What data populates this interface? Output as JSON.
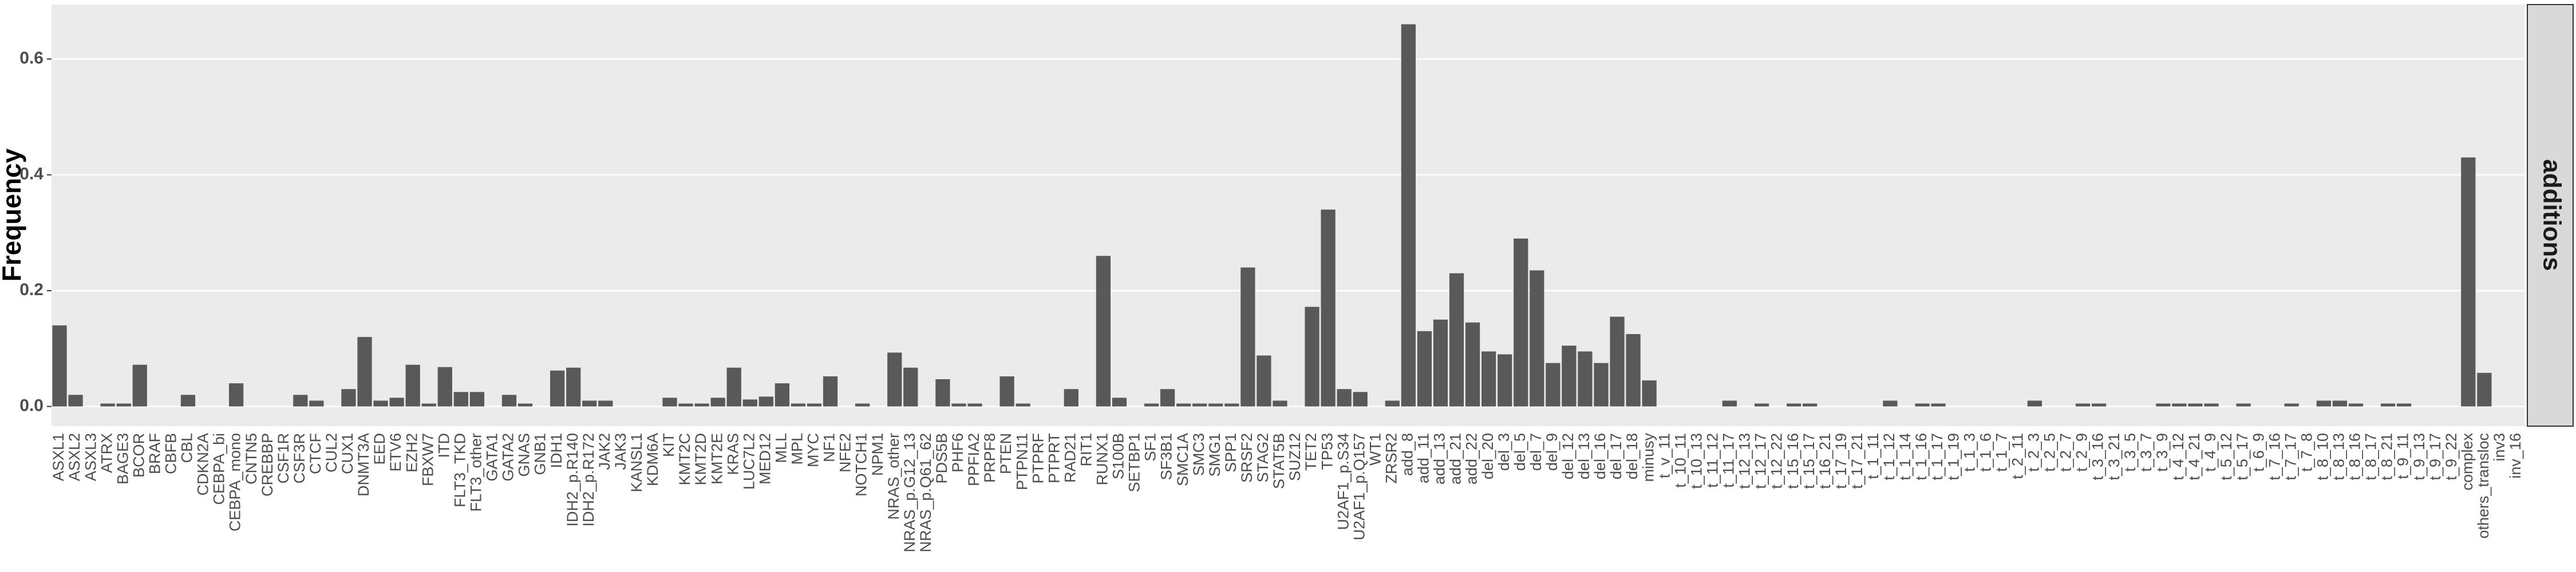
{
  "chart_data": {
    "type": "bar",
    "ylabel": "Frequency",
    "facet_label": "additions",
    "color": "#595959",
    "grid": true,
    "ylim": [
      -0.034,
      0.694
    ],
    "yticks": [
      {
        "value": 0,
        "label": "0.0"
      },
      0.2,
      0.4,
      0.6
    ],
    "categories": [
      "ASXL1",
      "ASXL2",
      "ASXL3",
      "ATRX",
      "BAGE3",
      "BCOR",
      "BRAF",
      "CBFB",
      "CBL",
      "CDKN2A",
      "CEBPA_bi",
      "CEBPA_mono",
      "CNTN5",
      "CREBBP",
      "CSF1R",
      "CSF3R",
      "CTCF",
      "CUL2",
      "CUX1",
      "DNMT3A",
      "EED",
      "ETV6",
      "EZH2",
      "FBXW7",
      "ITD",
      "FLT3_TKD",
      "FLT3_other",
      "GATA1",
      "GATA2",
      "GNAS",
      "GNB1",
      "IDH1",
      "IDH2_p.R140",
      "IDH2_p.R172",
      "JAK2",
      "JAK3",
      "KANSL1",
      "KDM6A",
      "KIT",
      "KMT2C",
      "KMT2D",
      "KMT2E",
      "KRAS",
      "LUC7L2",
      "MED12",
      "MLL",
      "MPL",
      "MYC",
      "NF1",
      "NFE2",
      "NOTCH1",
      "NPM1",
      "NRAS_other",
      "NRAS_p.G12_13",
      "NRAS_p.Q61_62",
      "PDS5B",
      "PHF6",
      "PPFIA2",
      "PRPF8",
      "PTEN",
      "PTPN11",
      "PTPRF",
      "PTPRT",
      "RAD21",
      "RIT1",
      "RUNX1",
      "S100B",
      "SETBP1",
      "SF1",
      "SF3B1",
      "SMC1A",
      "SMC3",
      "SMG1",
      "SPP1",
      "SRSF2",
      "STAG2",
      "STAT5B",
      "SUZ12",
      "TET2",
      "TP53",
      "U2AF1_p.S34",
      "U2AF1_p.Q157",
      "WT1",
      "ZRSR2",
      "add_8",
      "add_11",
      "add_13",
      "add_21",
      "add_22",
      "del_20",
      "del_3",
      "del_5",
      "del_7",
      "del_9",
      "del_12",
      "del_13",
      "del_16",
      "del_17",
      "del_18",
      "minusy",
      "t_v_11",
      "t_10_11",
      "t_10_13",
      "t_11_12",
      "t_11_17",
      "t_12_13",
      "t_12_17",
      "t_12_22",
      "t_15_16",
      "t_15_17",
      "t_16_21",
      "t_17_19",
      "t_17_21",
      "t_1_11",
      "t_1_12",
      "t_1_14",
      "t_1_16",
      "t_1_17",
      "t_1_19",
      "t_1_3",
      "t_1_6",
      "t_1_7",
      "t_2_11",
      "t_2_3",
      "t_2_5",
      "t_2_7",
      "t_2_9",
      "t_3_16",
      "t_3_21",
      "t_3_5",
      "t_3_7",
      "t_3_9",
      "t_4_12",
      "t_4_21",
      "t_4_9",
      "t_5_12",
      "t_5_17",
      "t_6_9",
      "t_7_16",
      "t_7_17",
      "t_7_8",
      "t_8_10",
      "t_8_13",
      "t_8_16",
      "t_8_17",
      "t_8_21",
      "t_9_11",
      "t_9_13",
      "t_9_17",
      "t_9_22",
      "complex",
      "others_transloc",
      "inv3",
      "inv_16"
    ],
    "values": [
      0.14,
      0.02,
      0,
      0.005,
      0.005,
      0.072,
      0,
      0,
      0.02,
      0,
      0,
      0.04,
      0,
      0,
      0,
      0.02,
      0.01,
      0,
      0.03,
      0.12,
      0.01,
      0.015,
      0.072,
      0.005,
      0.068,
      0.025,
      0.025,
      0,
      0.02,
      0.005,
      0,
      0.062,
      0.067,
      0.01,
      0.01,
      0,
      0,
      0,
      0.015,
      0.005,
      0.005,
      0.015,
      0.067,
      0.012,
      0.017,
      0.04,
      0.005,
      0.005,
      0.052,
      0,
      0.005,
      0,
      0.093,
      0.067,
      0,
      0.047,
      0.005,
      0.005,
      0,
      0.052,
      0.005,
      0,
      0,
      0.03,
      0,
      0.26,
      0.015,
      0,
      0.005,
      0.03,
      0.005,
      0.005,
      0.005,
      0.005,
      0.24,
      0.088,
      0.01,
      0,
      0.172,
      0.34,
      0.03,
      0.025,
      0,
      0.01,
      0.66,
      0.13,
      0.15,
      0.23,
      0.145,
      0.095,
      0.09,
      0.29,
      0.235,
      0.075,
      0.105,
      0.095,
      0.075,
      0.155,
      0.125,
      0.045,
      0,
      0,
      0,
      0,
      0.01,
      0,
      0.005,
      0,
      0.005,
      0.005,
      0,
      0,
      0,
      0,
      0.01,
      0,
      0.005,
      0.005,
      0,
      0,
      0,
      0,
      0,
      0.01,
      0,
      0,
      0.005,
      0.005,
      0,
      0,
      0,
      0.005,
      0.005,
      0.005,
      0.005,
      0,
      0.005,
      0,
      0,
      0.005,
      0,
      0.01,
      0.01,
      0.005,
      0,
      0.005,
      0.005,
      0,
      0,
      0,
      0.43,
      0.058,
      0,
      0
    ]
  }
}
